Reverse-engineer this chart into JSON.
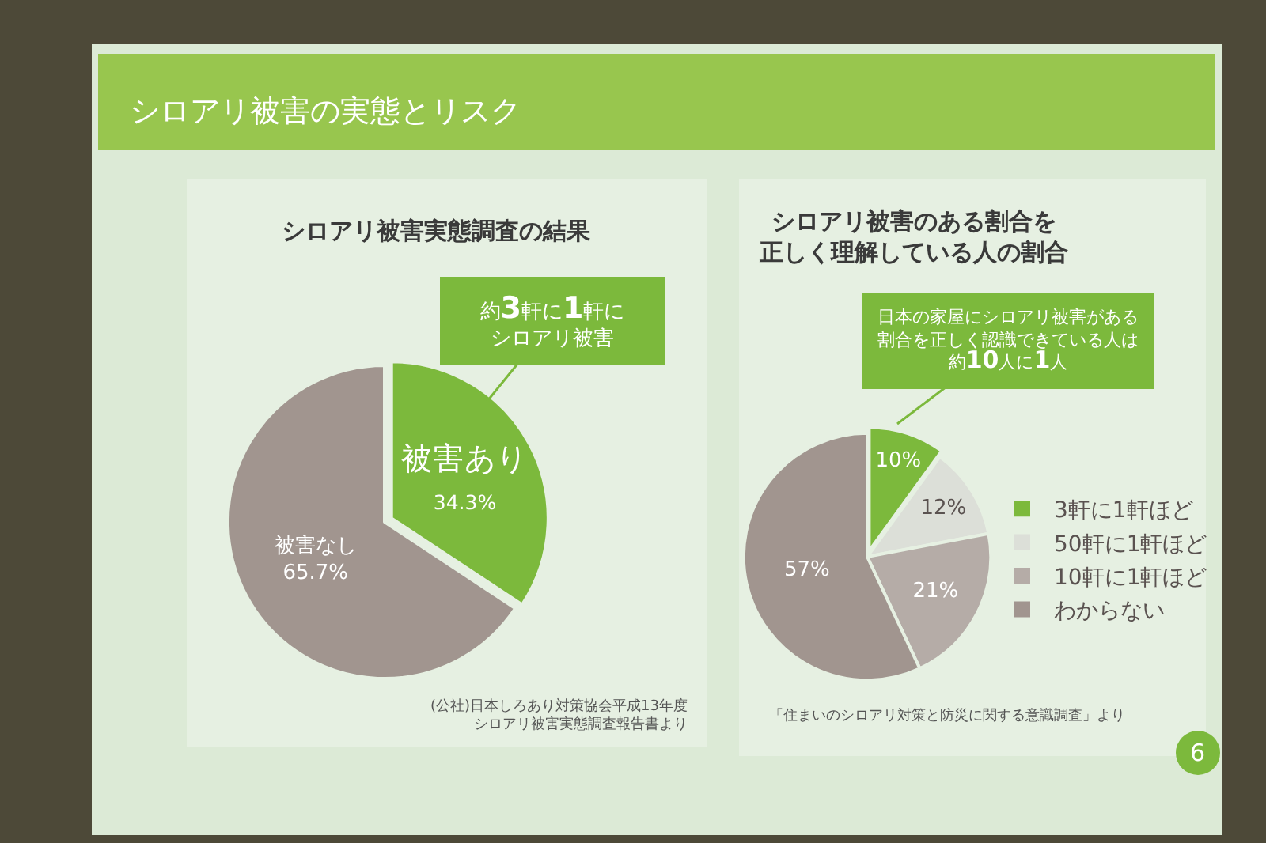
{
  "chart_data": [
    {
      "type": "other",
      "title": "シロアリ被害の実態とリスク",
      "annotations": [
        "6"
      ]
    },
    {
      "type": "pie",
      "title": "シロアリ被害実態調査の結果",
      "categories": [
        "被害あり",
        "被害なし"
      ],
      "values": [
        34.3,
        65.7
      ],
      "colors": [
        "#7cb93c",
        "#a1958f"
      ],
      "value_labels": [
        "34.3%",
        "65.7%"
      ],
      "annotations": [
        "約3軒に1軒にシロアリ被害",
        "(公社)日本しろあり対策協会平成13年度シロアリ被害実態調査報告書より"
      ]
    },
    {
      "type": "pie",
      "title": "シロアリ被害のある割合を正しく理解している人の割合",
      "categories": [
        "3軒に1軒ほど",
        "50軒に1軒ほど",
        "10軒に1軒ほど",
        "わからない"
      ],
      "values": [
        10,
        12,
        21,
        57
      ],
      "colors": [
        "#7cb93c",
        "#dcdfd8",
        "#b5aca7",
        "#a1958f"
      ],
      "value_labels": [
        "10%",
        "12%",
        "21%",
        "57%"
      ],
      "legend": "right",
      "annotations": [
        "日本の家屋にシロアリ被害がある割合を正しく認識できている人は約10人に1人",
        "「住まいのシロアリ対策と防災に関する意識調査」より"
      ]
    }
  ]
}
